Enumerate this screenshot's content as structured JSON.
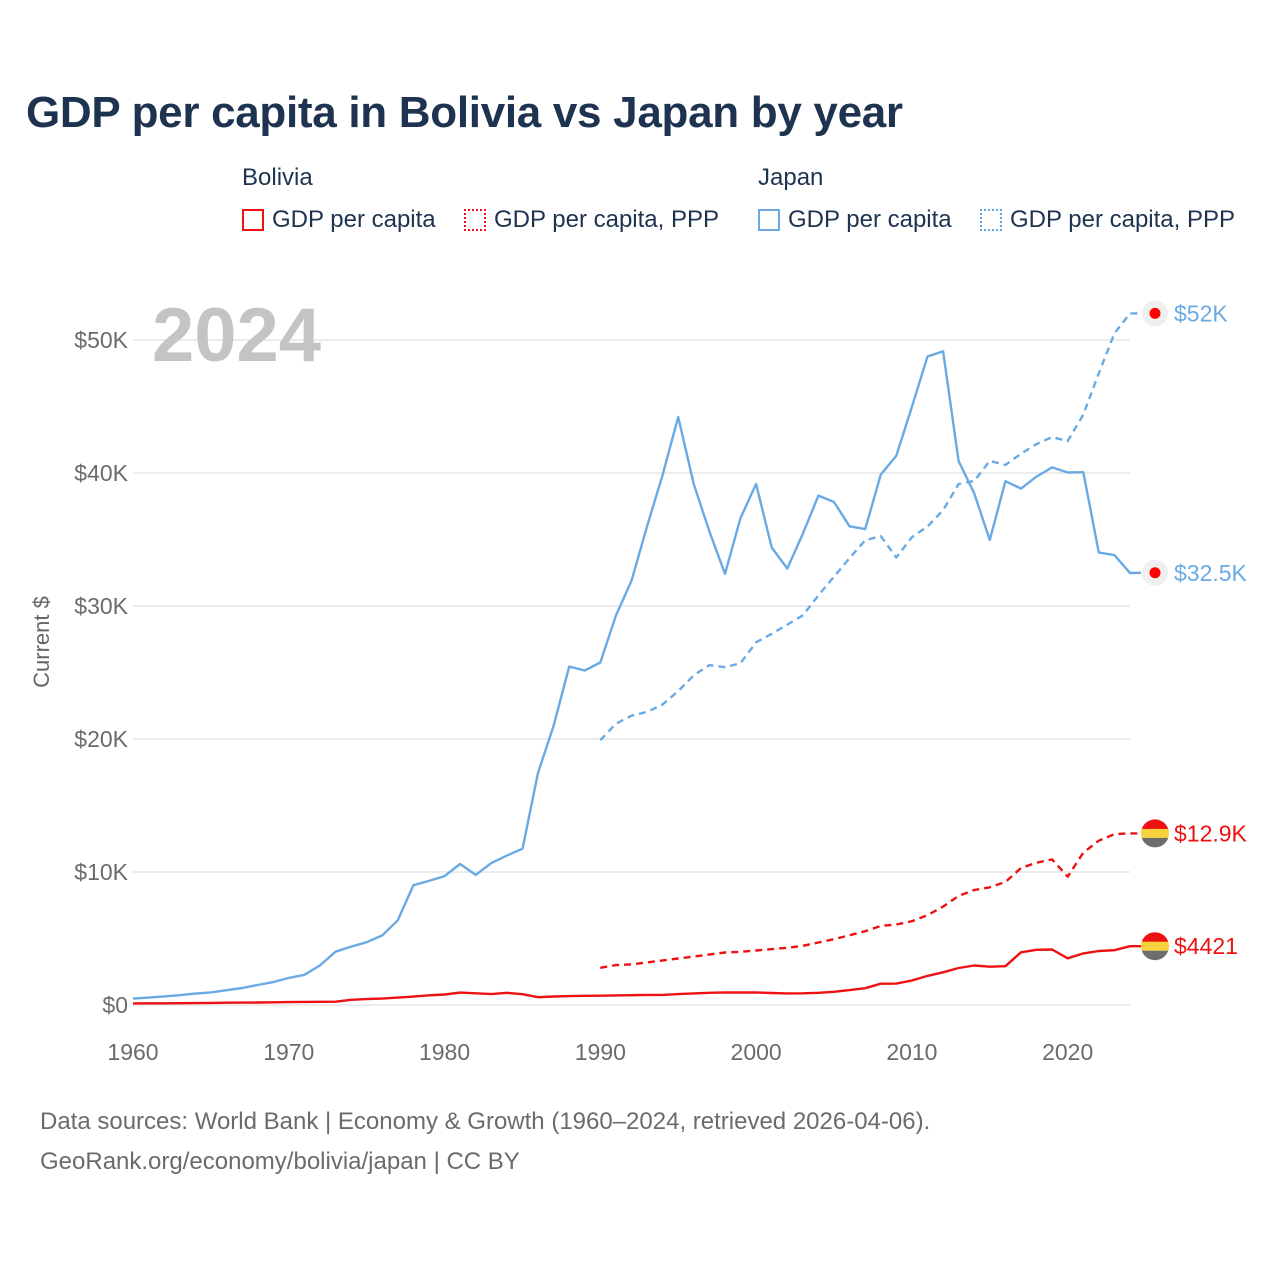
{
  "title": "GDP per capita in Bolivia vs Japan by year",
  "year_label": "2024",
  "legend": {
    "groups": [
      {
        "name": "Bolivia",
        "color": "#ee1111",
        "items": [
          {
            "label": "GDP per capita",
            "style": "solid"
          },
          {
            "label": "GDP per capita, PPP",
            "style": "dotted"
          }
        ]
      },
      {
        "name": "Japan",
        "color": "#6aaae4",
        "items": [
          {
            "label": "GDP per capita",
            "style": "solid"
          },
          {
            "label": "GDP per capita, PPP",
            "style": "dotted"
          }
        ]
      }
    ]
  },
  "y_axis_title": "Current $",
  "source_line1": "Data sources: World Bank | Economy & Growth (1960–2024, retrieved 2026-04-06).",
  "source_line2": "GeoRank.org/economy/bolivia/japan | CC BY",
  "colors": {
    "bolivia": "#ee1111",
    "japan": "#6aaae4",
    "grid": "#e6e6e6",
    "axis_text": "#6b6b6b",
    "year_watermark": "#c4c4c4"
  },
  "chart_data": {
    "type": "line",
    "title": "GDP per capita in Bolivia vs Japan by year",
    "xlabel": "",
    "ylabel": "Current $",
    "xlim": [
      1960,
      2024
    ],
    "ylim": [
      0,
      52000
    ],
    "x_ticks": [
      1960,
      1970,
      1980,
      1990,
      2000,
      2010,
      2020
    ],
    "y_ticks": [
      {
        "value": 0,
        "label": "$0"
      },
      {
        "value": 10000,
        "label": "$10K"
      },
      {
        "value": 20000,
        "label": "$20K"
      },
      {
        "value": 30000,
        "label": "$30K"
      },
      {
        "value": 40000,
        "label": "$40K"
      },
      {
        "value": 50000,
        "label": "$50K"
      }
    ],
    "series": [
      {
        "name": "Japan GDP per capita",
        "country": "Japan",
        "style": "solid",
        "color": "#6aaae4",
        "end_label": "$32.5K",
        "marker": "japan-flag",
        "x_start": 1960,
        "values": [
          480,
          560,
          650,
          740,
          860,
          950,
          1110,
          1280,
          1500,
          1720,
          2040,
          2270,
          2970,
          4010,
          4390,
          4720,
          5230,
          6370,
          9010,
          9330,
          9690,
          10600,
          9780,
          10670,
          11230,
          11750,
          17450,
          20990,
          25440,
          25150,
          25750,
          29280,
          31900,
          36000,
          39880,
          44210,
          39150,
          35610,
          32420,
          36610,
          39170,
          34400,
          32820,
          35440,
          38300,
          37820,
          35990,
          35780,
          39880,
          41300,
          44970,
          48760,
          49150,
          40900,
          38470,
          34960,
          39380,
          38830,
          39730,
          40420,
          40040,
          40060,
          34020,
          33830,
          32480
        ],
        "last_value": 32500
      },
      {
        "name": "Japan GDP per capita, PPP",
        "country": "Japan",
        "style": "dashed",
        "color": "#6aaae4",
        "end_label": "$52K",
        "marker": "japan-flag",
        "x_start": 1990,
        "values": [
          19900,
          21150,
          21750,
          22040,
          22600,
          23600,
          24800,
          25560,
          25400,
          25700,
          27270,
          27900,
          28600,
          29300,
          30800,
          32200,
          33600,
          34940,
          35250,
          33650,
          35170,
          35980,
          37200,
          39170,
          39400,
          40920,
          40600,
          41450,
          42170,
          42700,
          42400,
          44400,
          47500,
          50500,
          52000
        ],
        "last_value": 52000
      },
      {
        "name": "Bolivia GDP per capita",
        "country": "Bolivia",
        "style": "solid",
        "color": "#ee1111",
        "end_label": "$4421",
        "marker": "bolivia-flag",
        "x_start": 1960,
        "values": [
          120,
          125,
          130,
          135,
          145,
          160,
          175,
          180,
          190,
          200,
          220,
          230,
          240,
          250,
          390,
          440,
          480,
          560,
          630,
          730,
          790,
          930,
          880,
          820,
          920,
          810,
          590,
          640,
          670,
          690,
          700,
          720,
          740,
          760,
          760,
          820,
          870,
          920,
          950,
          940,
          940,
          900,
          870,
          880,
          920,
          990,
          1120,
          1260,
          1600,
          1610,
          1840,
          2190,
          2460,
          2780,
          2970,
          2880,
          2920,
          3960,
          4150,
          4170,
          3510,
          3880,
          4060,
          4120,
          4421
        ],
        "last_value": 4421
      },
      {
        "name": "Bolivia GDP per capita, PPP",
        "country": "Bolivia",
        "style": "dashed",
        "color": "#ee1111",
        "end_label": "$12.9K",
        "marker": "bolivia-flag",
        "x_start": 1990,
        "values": [
          2800,
          3000,
          3050,
          3200,
          3350,
          3500,
          3650,
          3800,
          3950,
          4000,
          4100,
          4200,
          4300,
          4450,
          4700,
          4950,
          5250,
          5550,
          5950,
          6050,
          6300,
          6750,
          7400,
          8200,
          8650,
          8850,
          9250,
          10300,
          10700,
          10950,
          9650,
          11450,
          12350,
          12850,
          12900
        ],
        "last_value": 12900
      }
    ]
  }
}
